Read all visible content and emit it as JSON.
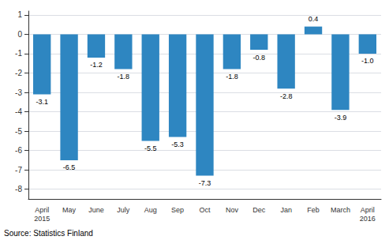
{
  "chart_data": {
    "type": "bar",
    "categories": [
      "April\n2015",
      "May",
      "June",
      "July",
      "Aug",
      "Sep",
      "Oct",
      "Nov",
      "Dec",
      "Jan",
      "Feb",
      "March",
      "April\n2016"
    ],
    "values": [
      -3.1,
      -6.5,
      -1.2,
      -1.8,
      -5.5,
      -5.3,
      -7.3,
      -1.8,
      -0.8,
      -2.8,
      0.4,
      -3.9,
      -1.0
    ],
    "value_labels": [
      "-3.1",
      "-6.5",
      "-1.2",
      "-1.8",
      "-5.5",
      "-5.3",
      "-7.3",
      "-1.8",
      "-0.8",
      "-2.8",
      "0.4",
      "-3.9",
      "-1.0"
    ],
    "color": "#2e86c1",
    "ylim": [
      -8.5,
      1.2
    ],
    "yticks": [
      -8,
      -7,
      -6,
      -5,
      -4,
      -3,
      -2,
      -1,
      0,
      1
    ],
    "grid": true,
    "data_labels": true,
    "annotations": [
      "Source: Statistics Finland"
    ]
  }
}
